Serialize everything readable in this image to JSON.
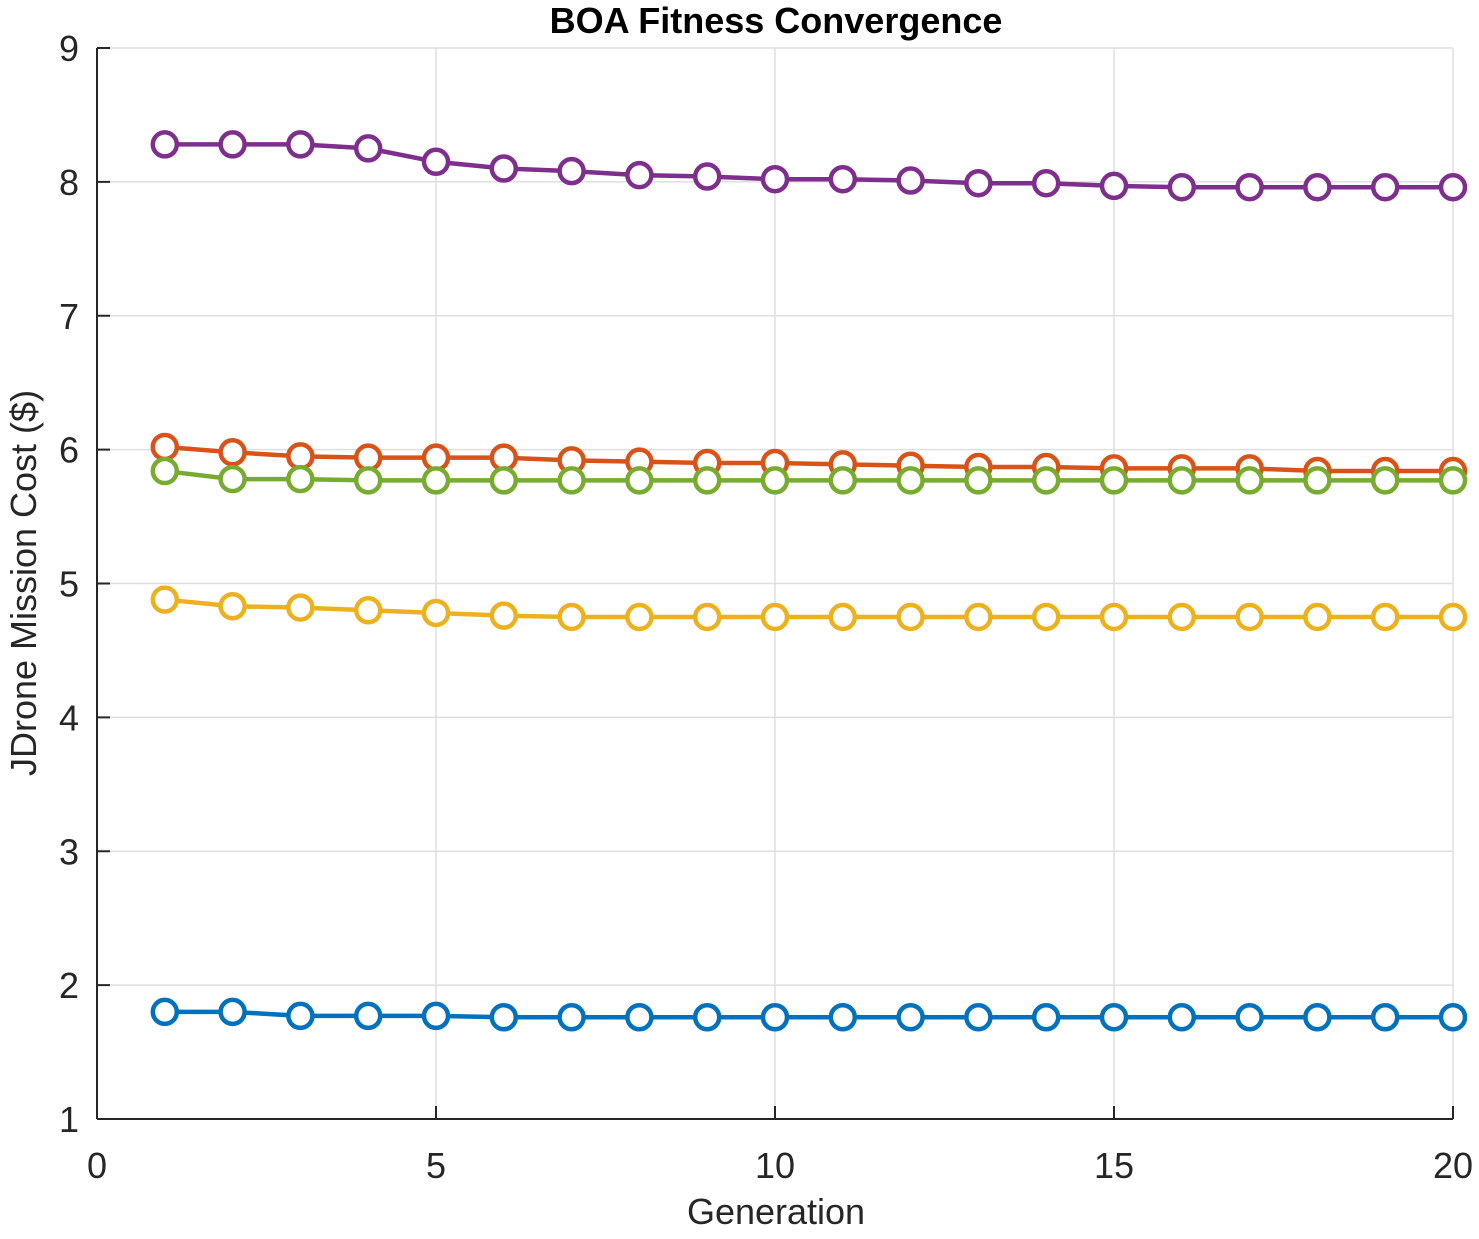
{
  "chart_data": {
    "type": "line",
    "title": "BOA Fitness Convergence",
    "xlabel": "Generation",
    "ylabel": "JDrone Mission Cost ($)",
    "xlim": [
      0,
      20
    ],
    "ylim": [
      1,
      9
    ],
    "xticks": [
      0,
      5,
      10,
      15,
      20
    ],
    "yticks": [
      1,
      2,
      3,
      4,
      5,
      6,
      7,
      8,
      9
    ],
    "grid": true,
    "legend": "none",
    "x": [
      1,
      2,
      3,
      4,
      5,
      6,
      7,
      8,
      9,
      10,
      11,
      12,
      13,
      14,
      15,
      16,
      17,
      18,
      19,
      20
    ],
    "series": [
      {
        "color": "#0072BD",
        "values": [
          1.8,
          1.8,
          1.77,
          1.77,
          1.77,
          1.76,
          1.76,
          1.76,
          1.76,
          1.76,
          1.76,
          1.76,
          1.76,
          1.76,
          1.76,
          1.76,
          1.76,
          1.76,
          1.76,
          1.76
        ]
      },
      {
        "color": "#D95319",
        "values": [
          6.02,
          5.98,
          5.95,
          5.94,
          5.94,
          5.94,
          5.92,
          5.91,
          5.9,
          5.9,
          5.89,
          5.88,
          5.87,
          5.87,
          5.86,
          5.86,
          5.86,
          5.84,
          5.84,
          5.84
        ]
      },
      {
        "color": "#EDB120",
        "values": [
          4.88,
          4.83,
          4.82,
          4.8,
          4.78,
          4.76,
          4.75,
          4.75,
          4.75,
          4.75,
          4.75,
          4.75,
          4.75,
          4.75,
          4.75,
          4.75,
          4.75,
          4.75,
          4.75,
          4.75
        ]
      },
      {
        "color": "#7E2F8E",
        "values": [
          8.28,
          8.28,
          8.28,
          8.25,
          8.15,
          8.1,
          8.08,
          8.05,
          8.04,
          8.02,
          8.02,
          8.01,
          7.99,
          7.99,
          7.97,
          7.96,
          7.96,
          7.96,
          7.96,
          7.96
        ]
      },
      {
        "color": "#77AC30",
        "values": [
          5.84,
          5.78,
          5.78,
          5.77,
          5.77,
          5.77,
          5.77,
          5.77,
          5.77,
          5.77,
          5.77,
          5.77,
          5.77,
          5.77,
          5.77,
          5.77,
          5.77,
          5.77,
          5.77,
          5.77
        ]
      }
    ]
  }
}
